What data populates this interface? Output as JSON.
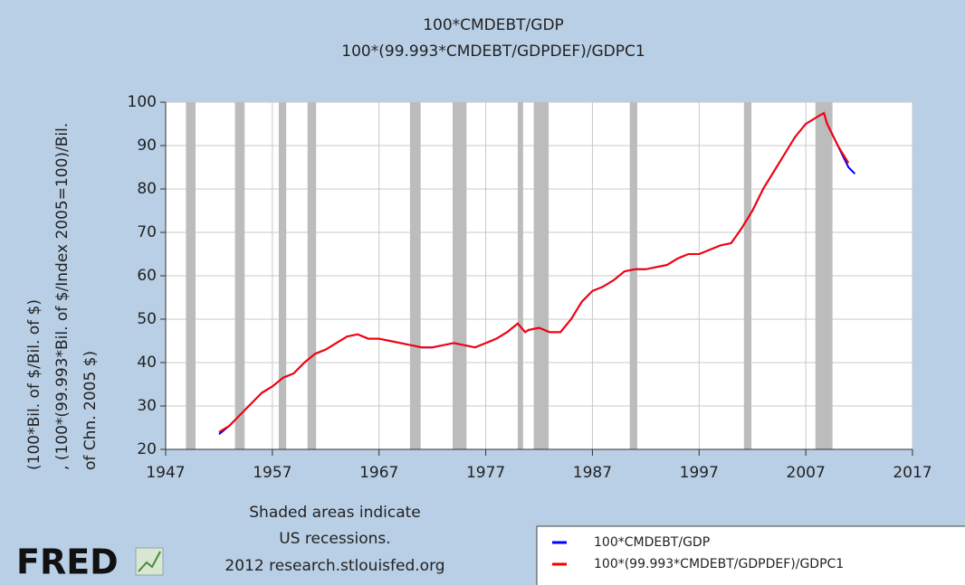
{
  "chart_data": {
    "type": "line",
    "title": [
      "100*CMDEBT/GDP",
      "100*(99.993*CMDEBT/GDPDEF)/GDPC1"
    ],
    "ylabel": [
      "(100*Bil. of $/Bil. of $)",
      ", (100*(99.993*Bil. of $/Index 2005=100)/Bil.",
      "of Chn. 2005 $)"
    ],
    "x": [
      1952,
      1953,
      1954,
      1955,
      1956,
      1957,
      1958,
      1959,
      1960,
      1961,
      1962,
      1963,
      1964,
      1965,
      1966,
      1967,
      1968,
      1969,
      1970,
      1971,
      1972,
      1973,
      1974,
      1975,
      1976,
      1977,
      1978,
      1979,
      1980,
      1980.7,
      1981,
      1982,
      1983,
      1984,
      1985,
      1986,
      1987,
      1988,
      1989,
      1990,
      1991,
      1992,
      1993,
      1994,
      1995,
      1996,
      1997,
      1998,
      1999,
      2000,
      2001,
      2002,
      2003,
      2004,
      2005,
      2006,
      2007,
      2008,
      2008.7,
      2009,
      2010,
      2011,
      2011.6
    ],
    "series": [
      {
        "name": "100*CMDEBT/GDP",
        "color": "#0000ff",
        "values": [
          23.5,
          25.5,
          28,
          30.5,
          33,
          34.5,
          36.5,
          37.5,
          40,
          42,
          43,
          44.5,
          46,
          46.5,
          45.5,
          45.5,
          45,
          44.5,
          44,
          43.5,
          43.5,
          44,
          44.5,
          44,
          43.5,
          44.5,
          45.5,
          47,
          49,
          47,
          47.5,
          48,
          47,
          47,
          50,
          54,
          56.5,
          57.5,
          59,
          61,
          61.5,
          61.5,
          62,
          62.5,
          64,
          65,
          65,
          66,
          67,
          67.5,
          71,
          75,
          80,
          84,
          88,
          92,
          95,
          96.5,
          97.5,
          95,
          90,
          85,
          83.5
        ]
      },
      {
        "name": "100*(99.993*CMDEBT/GDPDEF)/GDPC1",
        "color": "#ff0000",
        "values": [
          24,
          25.5,
          28,
          30.5,
          33,
          34.5,
          36.5,
          37.5,
          40,
          42,
          43,
          44.5,
          46,
          46.5,
          45.5,
          45.5,
          45,
          44.5,
          44,
          43.5,
          43.5,
          44,
          44.5,
          44,
          43.5,
          44.5,
          45.5,
          47,
          49,
          47,
          47.5,
          48,
          47,
          47,
          50,
          54,
          56.5,
          57.5,
          59,
          61,
          61.5,
          61.5,
          62,
          62.5,
          64,
          65,
          65,
          66,
          67,
          67.5,
          71,
          75,
          80,
          84,
          88,
          92,
          95,
          96.5,
          97.5,
          95,
          90,
          86,
          null
        ]
      }
    ],
    "recessions": [
      [
        1948.9,
        1949.8
      ],
      [
        1953.5,
        1954.4
      ],
      [
        1957.6,
        1958.3
      ],
      [
        1960.3,
        1961.1
      ],
      [
        1969.9,
        1970.9
      ],
      [
        1973.9,
        1975.2
      ],
      [
        1980.0,
        1980.5
      ],
      [
        1981.5,
        1982.9
      ],
      [
        1990.5,
        1991.2
      ],
      [
        2001.2,
        2001.9
      ],
      [
        2007.9,
        2009.5
      ]
    ],
    "recession_note": [
      "Shaded areas indicate",
      "US recessions."
    ],
    "source": "2012 research.stlouisfed.org",
    "logo": "FRED",
    "xlim": [
      1947,
      2017
    ],
    "xticks": [
      1947,
      1957,
      1967,
      1977,
      1987,
      1997,
      2007,
      2017
    ],
    "ylim": [
      20,
      100
    ],
    "yticks": [
      20,
      30,
      40,
      50,
      60,
      70,
      80,
      90,
      100
    ],
    "grid": true,
    "legend": "lower right"
  }
}
